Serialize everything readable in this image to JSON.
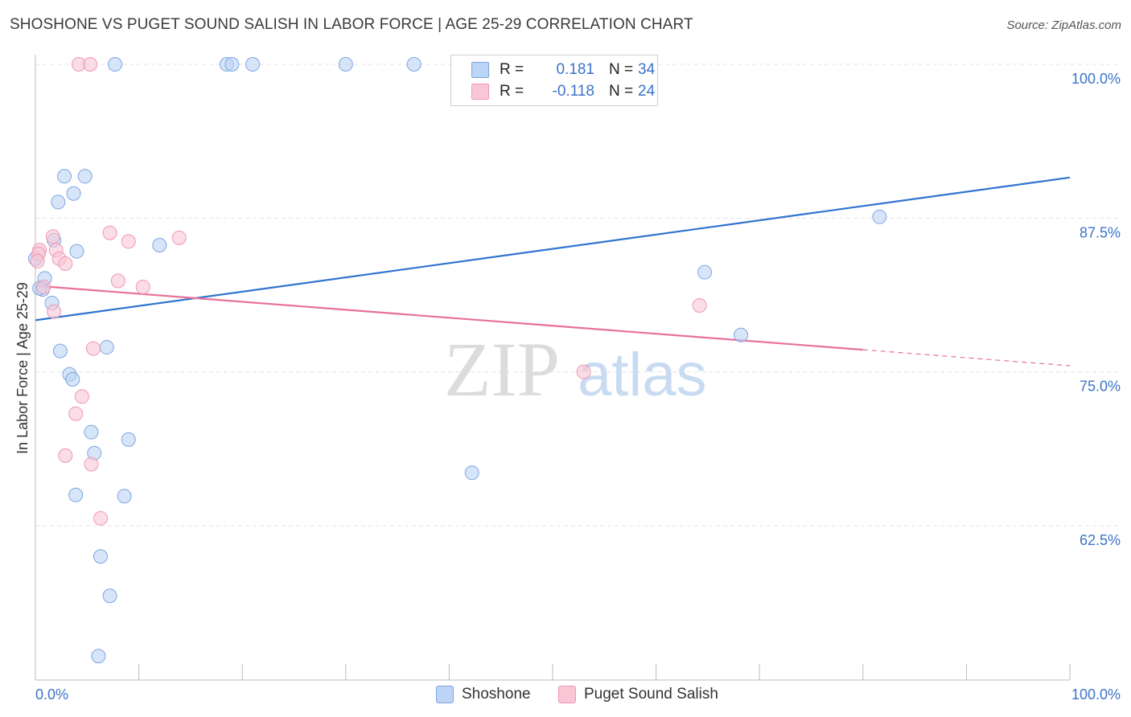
{
  "header": {
    "title": "SHOSHONE VS PUGET SOUND SALISH IN LABOR FORCE | AGE 25-29 CORRELATION CHART",
    "source": "Source: ZipAtlas.com"
  },
  "watermark": {
    "zip": "ZIP",
    "atlas": "atlas"
  },
  "legend": {
    "rows": [
      {
        "r_label": "R =",
        "r_value": "0.181",
        "n_label": "N =",
        "n_value": "34"
      },
      {
        "r_label": "R =",
        "r_value": "-0.118",
        "n_label": "N =",
        "n_value": "24"
      }
    ]
  },
  "colors": {
    "shoshone_fill": "#bcd4f5",
    "shoshone_stroke": "#7ea6e0",
    "shoshone_line": "#2f74d0",
    "salish_fill": "#f9c6d6",
    "salish_stroke": "#ee98b4",
    "salish_line": "#e8709a",
    "axis_text": "#3b74c9",
    "grid": "#e3e3e3"
  },
  "chart_data": {
    "type": "scatter",
    "title": "SHOSHONE VS PUGET SOUND SALISH IN LABOR FORCE | AGE 25-29 CORRELATION CHART",
    "xlabel": "",
    "ylabel": "In Labor Force | Age 25-29",
    "xlim": [
      0,
      100
    ],
    "ylim": [
      51.5,
      102
    ],
    "x_tick_labels": [
      "0.0%",
      "100.0%"
    ],
    "y_ticks": [
      62.5,
      75.0,
      87.5,
      100.0
    ],
    "y_tick_labels": [
      "62.5%",
      "75.0%",
      "87.5%",
      "100.0%"
    ],
    "grid": true,
    "legend_position": "top-center",
    "series": [
      {
        "name": "Shoshone",
        "r": 0.181,
        "n": 34,
        "points": [
          [
            7.7,
            100.0
          ],
          [
            18.5,
            100.0
          ],
          [
            19.0,
            100.0
          ],
          [
            21.0,
            100.0
          ],
          [
            30.0,
            100.0
          ],
          [
            36.6,
            100.0
          ],
          [
            2.8,
            90.9
          ],
          [
            4.8,
            90.9
          ],
          [
            3.7,
            89.5
          ],
          [
            2.2,
            88.8
          ],
          [
            1.8,
            85.7
          ],
          [
            12.0,
            85.3
          ],
          [
            4.0,
            84.8
          ],
          [
            0.0,
            84.2
          ],
          [
            0.9,
            82.6
          ],
          [
            0.7,
            81.7
          ],
          [
            1.6,
            80.6
          ],
          [
            2.4,
            76.7
          ],
          [
            6.9,
            77.0
          ],
          [
            3.3,
            74.8
          ],
          [
            3.6,
            74.4
          ],
          [
            5.4,
            70.1
          ],
          [
            5.7,
            68.4
          ],
          [
            9.0,
            69.5
          ],
          [
            3.9,
            65.0
          ],
          [
            8.6,
            64.9
          ],
          [
            6.3,
            60.0
          ],
          [
            7.2,
            56.8
          ],
          [
            6.1,
            51.9
          ],
          [
            42.2,
            66.8
          ],
          [
            64.7,
            83.1
          ],
          [
            68.2,
            78.0
          ],
          [
            81.6,
            87.6
          ],
          [
            0.4,
            81.8
          ]
        ]
      },
      {
        "name": "Puget Sound Salish",
        "r": -0.118,
        "n": 24,
        "points": [
          [
            4.2,
            100.0
          ],
          [
            5.3,
            100.0
          ],
          [
            1.7,
            86.0
          ],
          [
            7.2,
            86.3
          ],
          [
            9.0,
            85.6
          ],
          [
            13.9,
            85.9
          ],
          [
            0.4,
            84.9
          ],
          [
            2.0,
            84.9
          ],
          [
            2.3,
            84.2
          ],
          [
            2.9,
            83.8
          ],
          [
            8.0,
            82.4
          ],
          [
            10.4,
            81.9
          ],
          [
            0.8,
            81.9
          ],
          [
            1.8,
            79.9
          ],
          [
            5.6,
            76.9
          ],
          [
            53.0,
            75.0
          ],
          [
            64.2,
            80.4
          ],
          [
            4.5,
            73.0
          ],
          [
            3.9,
            71.6
          ],
          [
            2.9,
            68.2
          ],
          [
            5.4,
            67.5
          ],
          [
            6.3,
            63.1
          ],
          [
            0.3,
            84.6
          ],
          [
            0.2,
            84.0
          ]
        ]
      }
    ],
    "trend_lines": [
      {
        "series": "Shoshone",
        "x": [
          0,
          100
        ],
        "y": [
          79.2,
          90.8
        ],
        "style": "solid"
      },
      {
        "series": "Puget Sound Salish",
        "x": [
          0,
          80
        ],
        "y": [
          82.0,
          76.8
        ],
        "style": "solid"
      },
      {
        "series": "Puget Sound Salish",
        "x": [
          80,
          100
        ],
        "y": [
          76.8,
          75.5
        ],
        "style": "dashed"
      }
    ]
  },
  "bottom_legend": {
    "items": [
      "Shoshone",
      "Puget Sound Salish"
    ]
  }
}
